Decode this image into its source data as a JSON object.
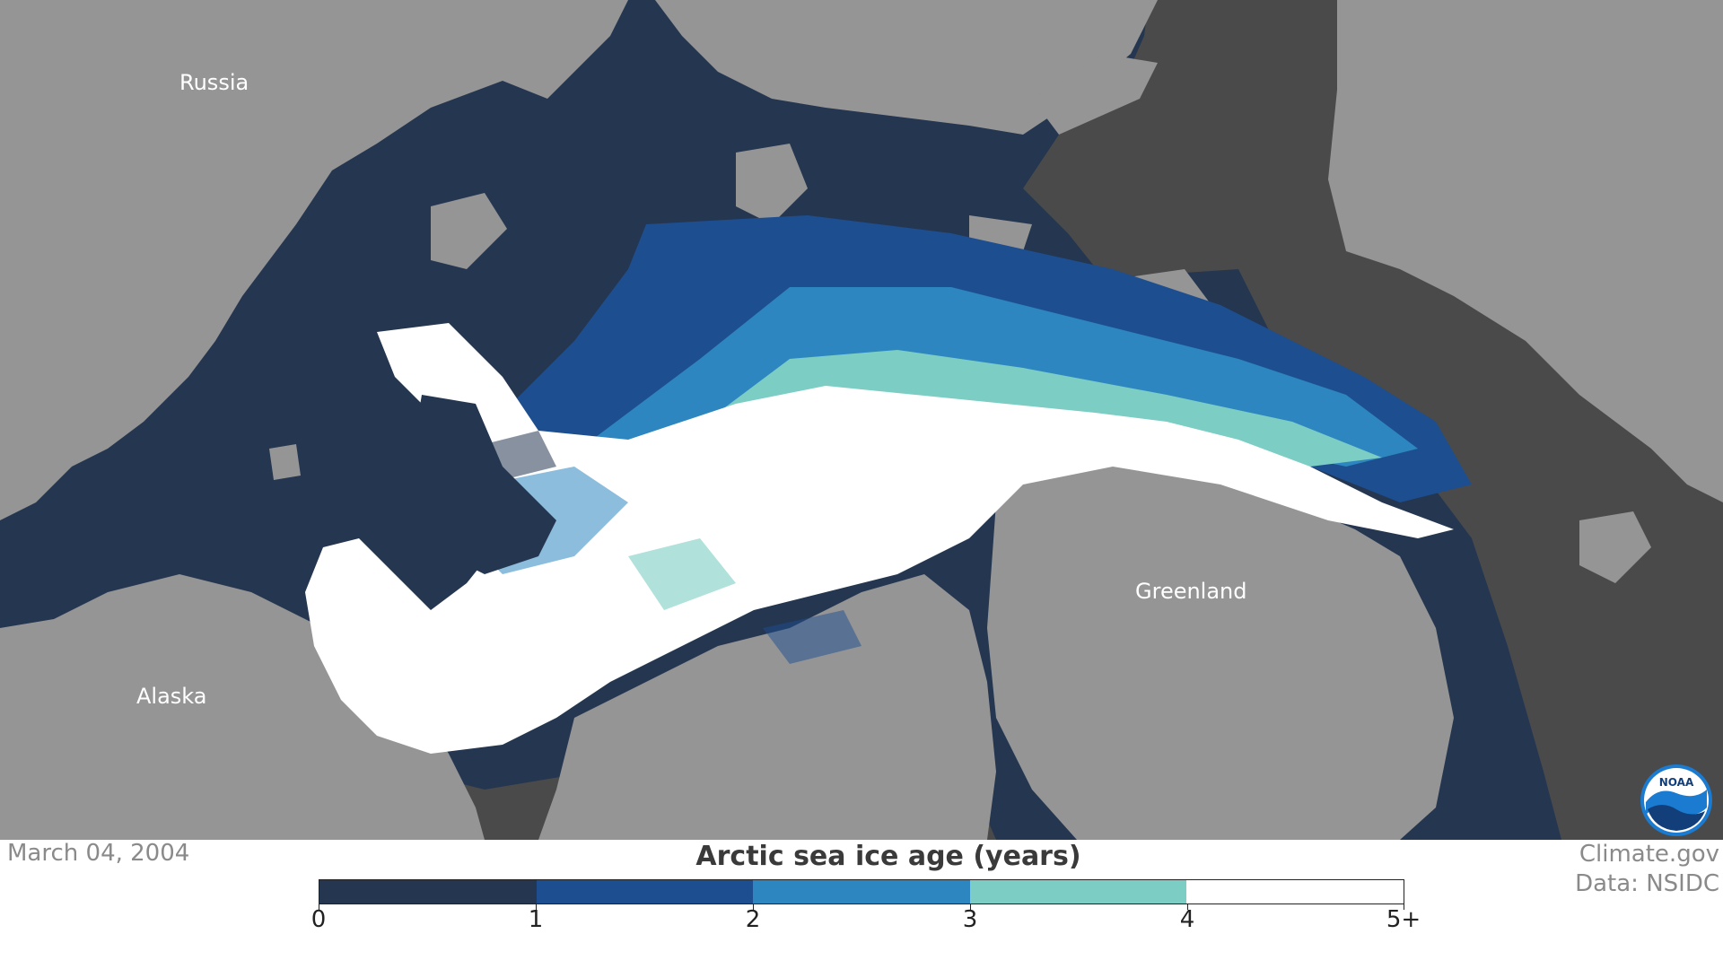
{
  "map": {
    "labels": {
      "russia": "Russia",
      "alaska": "Alaska",
      "greenland": "Greenland"
    },
    "colors": {
      "land": "#959595",
      "coast_shelf": "#4a4a4a",
      "ice_0_1": "#253650",
      "ice_1_2": "#1d4e8f",
      "ice_2_3": "#2d86bf",
      "ice_3_4": "#7ccdc3",
      "ice_4_5plus": "#ffffff"
    },
    "logo": {
      "icon": "noaa-logo-icon",
      "text": "NOAA"
    }
  },
  "footer": {
    "date": "March 04, 2004",
    "credit_line1": "Climate.gov",
    "credit_line2": "Data: NSIDC"
  },
  "legend": {
    "title": "Arctic sea ice age (years)",
    "bins": [
      {
        "label_from": "0",
        "color": "#253650"
      },
      {
        "label_from": "1",
        "color": "#1d4e8f"
      },
      {
        "label_from": "2",
        "color": "#2d86bf"
      },
      {
        "label_from": "3",
        "color": "#7ccdc3"
      },
      {
        "label_from": "4",
        "color": "#ffffff"
      }
    ],
    "tick_labels": [
      "0",
      "1",
      "2",
      "3",
      "4",
      "5+"
    ]
  }
}
